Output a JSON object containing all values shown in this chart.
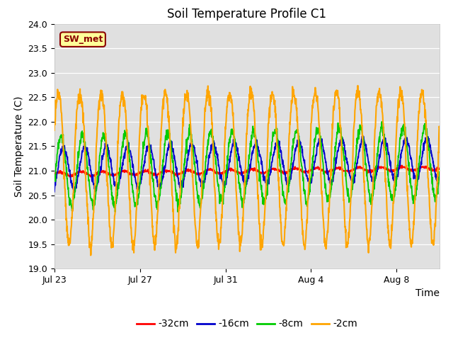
{
  "title": "Soil Temperature Profile C1",
  "xlabel": "Time",
  "ylabel": "Soil Temperature (C)",
  "ylim": [
    19.0,
    24.0
  ],
  "yticks": [
    19.0,
    19.5,
    20.0,
    20.5,
    21.0,
    21.5,
    22.0,
    22.5,
    23.0,
    23.5,
    24.0
  ],
  "xtick_labels": [
    "Jul 23",
    "Jul 27",
    "Jul 31",
    "Aug 4",
    "Aug 8"
  ],
  "xtick_positions": [
    0,
    4,
    8,
    12,
    16
  ],
  "xlim_min": 0,
  "xlim_max": 18,
  "fig_bg_color": "#FFFFFF",
  "plot_bg_color": "#E0E0E0",
  "grid_color": "#FFFFFF",
  "legend_label": "SW_met",
  "legend_bg": "#FFFF99",
  "legend_border_color": "#8B0000",
  "colors_32cm": "#FF0000",
  "colors_16cm": "#0000CC",
  "colors_8cm": "#00CC00",
  "colors_2cm": "#FFA500",
  "lw_32": 1.3,
  "lw_16": 1.3,
  "lw_8": 1.3,
  "lw_2": 1.5,
  "n_points": 1440,
  "n_days": 18
}
